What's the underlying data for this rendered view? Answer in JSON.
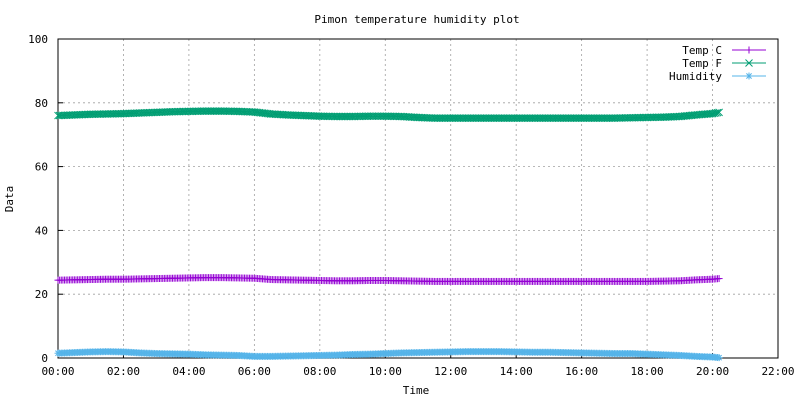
{
  "chart_data": {
    "type": "line",
    "title": "Pimon temperature   humidity plot",
    "xlabel": "Time",
    "ylabel": "Data",
    "xlim": [
      0,
      22
    ],
    "ylim": [
      0,
      100
    ],
    "x_ticks": [
      {
        "value": 0,
        "label": "00:00"
      },
      {
        "value": 2,
        "label": "02:00"
      },
      {
        "value": 4,
        "label": "04:00"
      },
      {
        "value": 6,
        "label": "06:00"
      },
      {
        "value": 8,
        "label": "08:00"
      },
      {
        "value": 10,
        "label": "10:00"
      },
      {
        "value": 12,
        "label": "12:00"
      },
      {
        "value": 14,
        "label": "14:00"
      },
      {
        "value": 16,
        "label": "16:00"
      },
      {
        "value": 18,
        "label": "18:00"
      },
      {
        "value": 20,
        "label": "20:00"
      },
      {
        "value": 22,
        "label": "22:00"
      }
    ],
    "y_ticks": [
      {
        "value": 0,
        "label": "0"
      },
      {
        "value": 20,
        "label": "20"
      },
      {
        "value": 40,
        "label": "40"
      },
      {
        "value": 60,
        "label": "60"
      },
      {
        "value": 80,
        "label": "80"
      },
      {
        "value": 100,
        "label": "100"
      }
    ],
    "grid": true,
    "legend_position": "top-right",
    "series": [
      {
        "name": "Temp C",
        "color": "#9400d3",
        "marker": "plus",
        "points": [
          [
            0,
            24.4
          ],
          [
            0.5,
            24.5
          ],
          [
            1,
            24.6
          ],
          [
            1.5,
            24.7
          ],
          [
            2,
            24.7
          ],
          [
            2.5,
            24.8
          ],
          [
            3,
            24.9
          ],
          [
            3.5,
            25.0
          ],
          [
            4,
            25.1
          ],
          [
            4.5,
            25.2
          ],
          [
            5,
            25.2
          ],
          [
            5.5,
            25.1
          ],
          [
            6,
            25.0
          ],
          [
            6.5,
            24.6
          ],
          [
            7,
            24.5
          ],
          [
            7.5,
            24.4
          ],
          [
            8,
            24.3
          ],
          [
            8.5,
            24.2
          ],
          [
            9,
            24.2
          ],
          [
            9.5,
            24.3
          ],
          [
            10,
            24.3
          ],
          [
            10.5,
            24.2
          ],
          [
            11,
            24.1
          ],
          [
            11.5,
            24.0
          ],
          [
            12,
            24.0
          ],
          [
            12.5,
            24.0
          ],
          [
            13,
            24.0
          ],
          [
            13.5,
            24.0
          ],
          [
            14,
            24.0
          ],
          [
            14.5,
            24.0
          ],
          [
            15,
            24.0
          ],
          [
            15.5,
            24.0
          ],
          [
            16,
            24.0
          ],
          [
            16.5,
            24.0
          ],
          [
            17,
            24.0
          ],
          [
            17.5,
            24.0
          ],
          [
            18,
            24.0
          ],
          [
            18.5,
            24.1
          ],
          [
            19,
            24.2
          ],
          [
            19.5,
            24.5
          ],
          [
            20,
            24.7
          ],
          [
            20.2,
            24.9
          ]
        ]
      },
      {
        "name": "Temp F",
        "color": "#009e73",
        "marker": "cross",
        "points": [
          [
            0,
            76.0
          ],
          [
            0.5,
            76.2
          ],
          [
            1,
            76.4
          ],
          [
            1.5,
            76.5
          ],
          [
            2,
            76.6
          ],
          [
            2.5,
            76.8
          ],
          [
            3,
            77.0
          ],
          [
            3.5,
            77.2
          ],
          [
            4,
            77.3
          ],
          [
            4.5,
            77.4
          ],
          [
            5,
            77.4
          ],
          [
            5.5,
            77.3
          ],
          [
            6,
            77.1
          ],
          [
            6.5,
            76.5
          ],
          [
            7,
            76.2
          ],
          [
            7.5,
            76.0
          ],
          [
            8,
            75.8
          ],
          [
            8.5,
            75.7
          ],
          [
            9,
            75.7
          ],
          [
            9.5,
            75.8
          ],
          [
            10,
            75.8
          ],
          [
            10.5,
            75.7
          ],
          [
            11,
            75.4
          ],
          [
            11.5,
            75.2
          ],
          [
            12,
            75.2
          ],
          [
            12.5,
            75.2
          ],
          [
            13,
            75.2
          ],
          [
            13.5,
            75.2
          ],
          [
            14,
            75.2
          ],
          [
            14.5,
            75.2
          ],
          [
            15,
            75.2
          ],
          [
            15.5,
            75.2
          ],
          [
            16,
            75.2
          ],
          [
            16.5,
            75.2
          ],
          [
            17,
            75.2
          ],
          [
            17.5,
            75.3
          ],
          [
            18,
            75.4
          ],
          [
            18.5,
            75.5
          ],
          [
            19,
            75.7
          ],
          [
            19.5,
            76.2
          ],
          [
            20,
            76.6
          ],
          [
            20.2,
            77.0
          ]
        ]
      },
      {
        "name": "Humidity",
        "color": "#56b4e9",
        "marker": "star",
        "points": [
          [
            0,
            1.5
          ],
          [
            0.5,
            1.7
          ],
          [
            1,
            1.9
          ],
          [
            1.5,
            2.0
          ],
          [
            2,
            1.9
          ],
          [
            2.5,
            1.6
          ],
          [
            3,
            1.4
          ],
          [
            3.5,
            1.3
          ],
          [
            4,
            1.2
          ],
          [
            4.5,
            1.0
          ],
          [
            5,
            0.9
          ],
          [
            5.5,
            0.8
          ],
          [
            6,
            0.5
          ],
          [
            6.5,
            0.5
          ],
          [
            7,
            0.6
          ],
          [
            7.5,
            0.7
          ],
          [
            8,
            0.8
          ],
          [
            8.5,
            0.9
          ],
          [
            9,
            1.1
          ],
          [
            9.5,
            1.2
          ],
          [
            10,
            1.4
          ],
          [
            10.5,
            1.6
          ],
          [
            11,
            1.7
          ],
          [
            11.5,
            1.8
          ],
          [
            12,
            1.9
          ],
          [
            12.5,
            2.0
          ],
          [
            13,
            2.0
          ],
          [
            13.5,
            2.0
          ],
          [
            14,
            1.9
          ],
          [
            14.5,
            1.8
          ],
          [
            15,
            1.8
          ],
          [
            15.5,
            1.7
          ],
          [
            16,
            1.6
          ],
          [
            16.5,
            1.5
          ],
          [
            17,
            1.4
          ],
          [
            17.5,
            1.4
          ],
          [
            18,
            1.2
          ],
          [
            18.5,
            1.0
          ],
          [
            19,
            0.8
          ],
          [
            19.5,
            0.5
          ],
          [
            20,
            0.3
          ],
          [
            20.2,
            0.1
          ]
        ]
      }
    ]
  }
}
